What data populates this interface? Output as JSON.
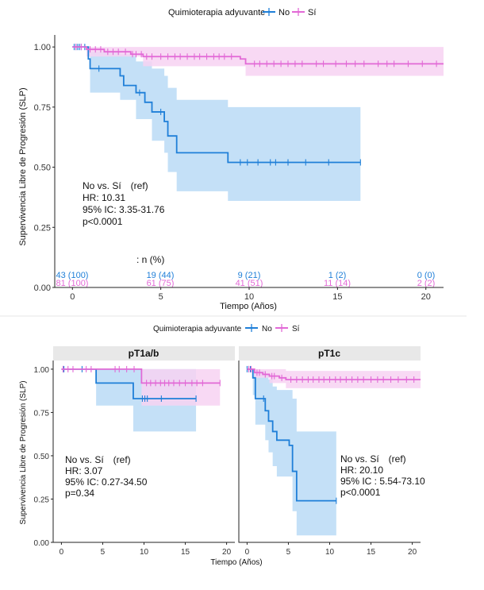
{
  "colors": {
    "no": "#1f7fd8",
    "si": "#e269d6",
    "no_fill": "#badaf6",
    "si_fill": "#f7d2f2",
    "strip": "#e8e8e8"
  },
  "legend": {
    "title": "Quimioterapia adyuvante",
    "items": [
      "No",
      "Sí"
    ]
  },
  "top": {
    "ylabel": "Supervivencia Libre de Progresión (SLP)",
    "xlabel": "Tiempo (Años)",
    "xticks": [
      "0",
      "5",
      "10",
      "15",
      "20"
    ],
    "yticks": [
      "0.00",
      "0.25",
      "0.50",
      "0.75",
      "1.00"
    ],
    "annotation": [
      "No vs. Sí　(ref)",
      "HR: 10.31",
      "95% IC: 3.35-31.76",
      "p<0.0001"
    ],
    "risk_title": ": n (%)",
    "risk_no": [
      "43 (100)",
      "19 (44)",
      "9 (21)",
      "1 (2)",
      "0 (0)"
    ],
    "risk_si": [
      "81 (100)",
      "61 (75)",
      "41 (51)",
      "11 (14)",
      "2 (2)"
    ]
  },
  "bottom": {
    "ylabel": "Supervivencia Libre de Progresión (SLP)",
    "xlabel": "Tiempo (Años)",
    "xticks": [
      "0",
      "5",
      "10",
      "15",
      "20"
    ],
    "yticks": [
      "0.00",
      "0.25",
      "0.50",
      "0.75",
      "1.00"
    ],
    "left_title": "pT1a/b",
    "right_title": "pT1c",
    "left_annotation": [
      "No vs. Sí　(ref)",
      "HR: 3.07",
      "95% IC: 0.27-34.50",
      "p=0.34"
    ],
    "right_annotation": [
      "No vs. Sí　(ref)",
      "HR: 20.10",
      "95% IC : 5.54-73.10",
      "p<0.0001"
    ]
  },
  "chart_data": [
    {
      "type": "line",
      "title": "",
      "xlabel": "Tiempo (Años)",
      "ylabel": "Supervivencia Libre de Progresión (SLP)",
      "xlim": [
        -1,
        21
      ],
      "ylim": [
        0,
        1.05
      ],
      "series": [
        {
          "name": "No",
          "steps": [
            [
              0,
              1.0
            ],
            [
              0.9,
              0.95
            ],
            [
              1.0,
              0.91
            ],
            [
              2.7,
              0.88
            ],
            [
              2.9,
              0.84
            ],
            [
              3.6,
              0.81
            ],
            [
              4.1,
              0.77
            ],
            [
              4.5,
              0.73
            ],
            [
              5.0,
              0.73
            ],
            [
              5.2,
              0.69
            ],
            [
              5.4,
              0.63
            ],
            [
              5.9,
              0.56
            ],
            [
              8.8,
              0.52
            ],
            [
              16.3,
              0.52
            ]
          ],
          "ci": [
            [
              0,
              1.0,
              1.0
            ],
            [
              1.0,
              0.81,
              0.98
            ],
            [
              2.7,
              0.78,
              0.97
            ],
            [
              3.6,
              0.7,
              0.94
            ],
            [
              4.5,
              0.61,
              0.91
            ],
            [
              5.2,
              0.56,
              0.88
            ],
            [
              5.4,
              0.48,
              0.83
            ],
            [
              5.9,
              0.4,
              0.78
            ],
            [
              8.8,
              0.36,
              0.75
            ],
            [
              16.3,
              0.36,
              0.75
            ]
          ],
          "censor": [
            0.1,
            0.2,
            0.3,
            0.4,
            0.5,
            0.7,
            1.5,
            3.8,
            5.0,
            9.5,
            9.9,
            10.5,
            11.2,
            11.5,
            12.2,
            13.2,
            14.5,
            16.3
          ]
        },
        {
          "name": "Sí",
          "steps": [
            [
              0,
              1.0
            ],
            [
              0.8,
              0.99
            ],
            [
              1.8,
              0.98
            ],
            [
              3.3,
              0.97
            ],
            [
              4.0,
              0.96
            ],
            [
              9.5,
              0.95
            ],
            [
              9.8,
              0.93
            ],
            [
              21,
              0.93
            ]
          ],
          "ci": [
            [
              0,
              1.0,
              1.0
            ],
            [
              0.8,
              0.96,
              1.0
            ],
            [
              4.0,
              0.92,
              1.0
            ],
            [
              9.8,
              0.88,
              1.0
            ],
            [
              21,
              0.88,
              1.0
            ]
          ],
          "censor": [
            0.2,
            0.5,
            1.0,
            1.3,
            1.6,
            2.0,
            2.3,
            2.6,
            3.0,
            3.4,
            3.6,
            3.9,
            4.2,
            4.5,
            5.0,
            5.4,
            5.8,
            6.1,
            6.5,
            6.9,
            7.2,
            7.6,
            8.0,
            8.3,
            8.6,
            9.0,
            10.3,
            10.6,
            11.0,
            11.4,
            11.8,
            12.2,
            12.6,
            13.0,
            13.8,
            14.2,
            14.9,
            15.5,
            16.0,
            16.5,
            17.3,
            17.8,
            18.2,
            19.0,
            19.8,
            20.6
          ]
        }
      ]
    },
    {
      "type": "line",
      "title": "pT1a/b",
      "xlabel": "Tiempo (Años)",
      "ylabel": "Supervivencia Libre de Progresión (SLP)",
      "xlim": [
        -1,
        21
      ],
      "ylim": [
        0,
        1.05
      ],
      "series": [
        {
          "name": "No",
          "steps": [
            [
              0,
              1.0
            ],
            [
              4.2,
              0.92
            ],
            [
              8.7,
              0.83
            ],
            [
              16.3,
              0.83
            ]
          ],
          "ci": [
            [
              0,
              1.0,
              1.0
            ],
            [
              4.2,
              0.79,
              1.0
            ],
            [
              8.7,
              0.64,
              1.0
            ],
            [
              16.3,
              0.64,
              1.0
            ]
          ],
          "censor": [
            0.2,
            0.3,
            2.5,
            9.8,
            10.1,
            10.4,
            12.1,
            16.3
          ]
        },
        {
          "name": "Sí",
          "steps": [
            [
              0,
              1.0
            ],
            [
              9.7,
              0.92
            ],
            [
              19.2,
              0.92
            ]
          ],
          "ci": [
            [
              0,
              1.0,
              1.0
            ],
            [
              9.7,
              0.79,
              1.0
            ],
            [
              19.2,
              0.79,
              1.0
            ]
          ],
          "censor": [
            0.2,
            0.8,
            1.4,
            3.0,
            3.6,
            6.5,
            7.0,
            7.9,
            8.8,
            10.3,
            10.8,
            11.4,
            12.0,
            12.5,
            13.0,
            13.6,
            14.3,
            15.0,
            15.8,
            16.4,
            17.1,
            19.2
          ]
        }
      ]
    },
    {
      "type": "line",
      "title": "pT1c",
      "xlabel": "Tiempo (Años)",
      "ylabel": "Supervivencia Libre de Progresión (SLP)",
      "xlim": [
        -1,
        21
      ],
      "ylim": [
        0,
        1.05
      ],
      "series": [
        {
          "name": "No",
          "steps": [
            [
              0,
              1.0
            ],
            [
              0.7,
              0.95
            ],
            [
              1.0,
              0.83
            ],
            [
              2.2,
              0.76
            ],
            [
              2.6,
              0.7
            ],
            [
              3.1,
              0.64
            ],
            [
              3.6,
              0.59
            ],
            [
              5.1,
              0.56
            ],
            [
              5.5,
              0.41
            ],
            [
              6.0,
              0.24
            ],
            [
              10.8,
              0.24
            ]
          ],
          "ci": [
            [
              0,
              1.0,
              1.0
            ],
            [
              0.7,
              0.85,
              1.0
            ],
            [
              1.0,
              0.68,
              0.99
            ],
            [
              2.2,
              0.59,
              0.97
            ],
            [
              2.6,
              0.52,
              0.94
            ],
            [
              3.1,
              0.44,
              0.9
            ],
            [
              3.6,
              0.38,
              0.88
            ],
            [
              5.5,
              0.18,
              0.83
            ],
            [
              6.0,
              0.04,
              0.64
            ],
            [
              10.8,
              0.04,
              0.64
            ]
          ],
          "censor": [
            0.0,
            0.2,
            0.4,
            2.0,
            10.8
          ]
        },
        {
          "name": "Sí",
          "steps": [
            [
              0,
              1.0
            ],
            [
              0.9,
              0.98
            ],
            [
              1.9,
              0.97
            ],
            [
              2.7,
              0.96
            ],
            [
              3.9,
              0.95
            ],
            [
              4.7,
              0.94
            ],
            [
              21,
              0.94
            ]
          ],
          "ci": [
            [
              0,
              1.0,
              1.0
            ],
            [
              0.9,
              0.95,
              1.0
            ],
            [
              2.7,
              0.92,
              1.0
            ],
            [
              4.7,
              0.89,
              0.99
            ],
            [
              21,
              0.89,
              0.99
            ]
          ],
          "censor": [
            0.2,
            0.5,
            1.2,
            1.5,
            2.2,
            3.0,
            3.3,
            4.2,
            5.3,
            6.0,
            6.7,
            7.4,
            8.0,
            8.7,
            9.3,
            10.0,
            10.7,
            11.3,
            12.0,
            12.7,
            13.4,
            14.1,
            15.0,
            15.8,
            16.5,
            17.4,
            18.3,
            19.3,
            20.2
          ]
        }
      ]
    }
  ]
}
